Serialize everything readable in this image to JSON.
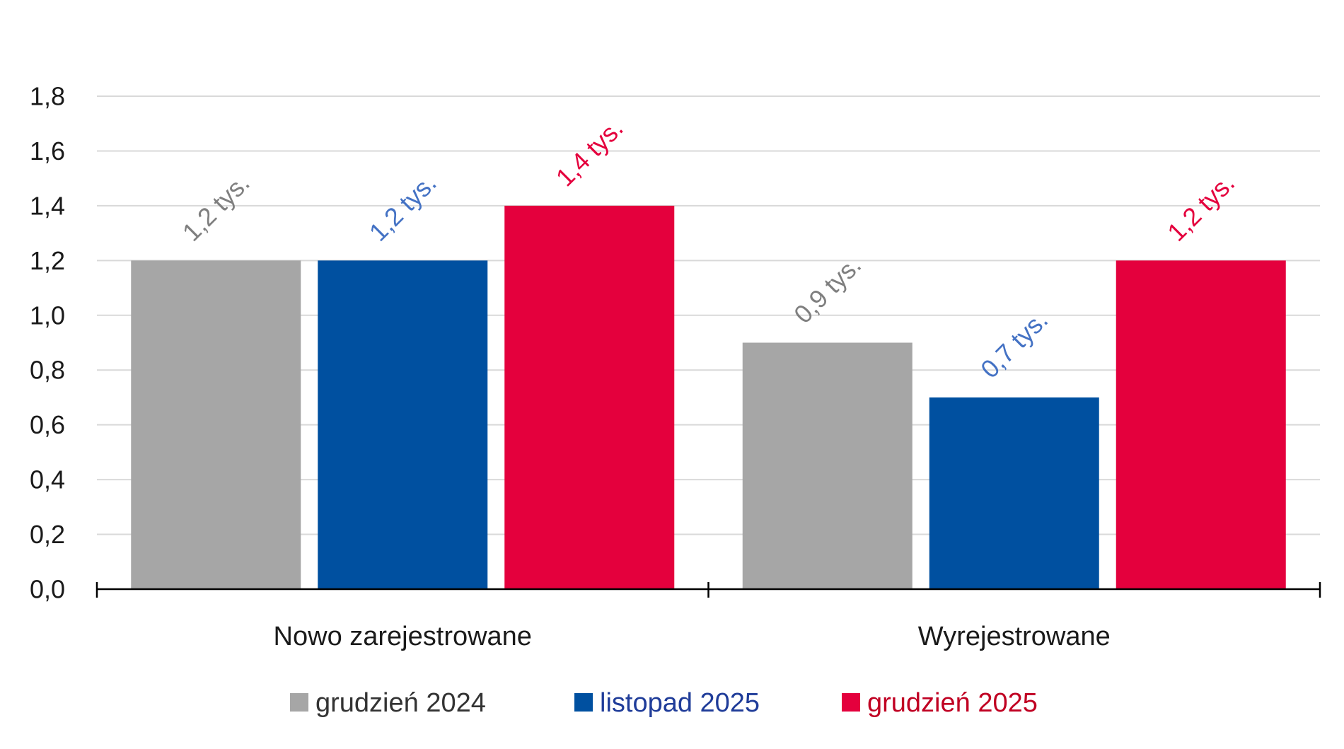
{
  "chart_data": {
    "type": "bar",
    "title": "",
    "xlabel": "",
    "ylabel": "",
    "categories": [
      "Nowo zarejestrowane",
      "Wyrejestrowane"
    ],
    "series": [
      {
        "name": "grudzień 2024",
        "values": [
          1.2,
          0.9
        ],
        "labels": [
          "1,2 tys.",
          "0,9 tys."
        ],
        "color": "#a6a6a6",
        "label_color": "#7f7f7f",
        "legend_text_color": "#333333"
      },
      {
        "name": "listopad 2025",
        "values": [
          1.2,
          0.7
        ],
        "labels": [
          "1,2 tys.",
          "0,7 tys."
        ],
        "color": "#0050a0",
        "label_color": "#4472c4",
        "legend_text_color": "#1f3c99"
      },
      {
        "name": "grudzień 2025",
        "values": [
          1.4,
          1.2
        ],
        "labels": [
          "1,4 tys.",
          "1,2 tys."
        ],
        "color": "#e4003d",
        "label_color": "#e4003d",
        "legend_text_color": "#c00022"
      }
    ],
    "ylim": [
      0,
      1.8
    ],
    "yticks": [
      0,
      0.2,
      0.4,
      0.6,
      0.8,
      1.0,
      1.2,
      1.4,
      1.6,
      1.8
    ],
    "ytick_labels": [
      "0,0",
      "0,2",
      "0,4",
      "0,6",
      "0,8",
      "1,0",
      "1,2",
      "1,4",
      "1,6",
      "1,8"
    ],
    "grid": true,
    "grid_color": "#d9d9d9",
    "axis_color": "#000000",
    "text_color": "#1a1a1a",
    "legend_position": "bottom-center"
  }
}
